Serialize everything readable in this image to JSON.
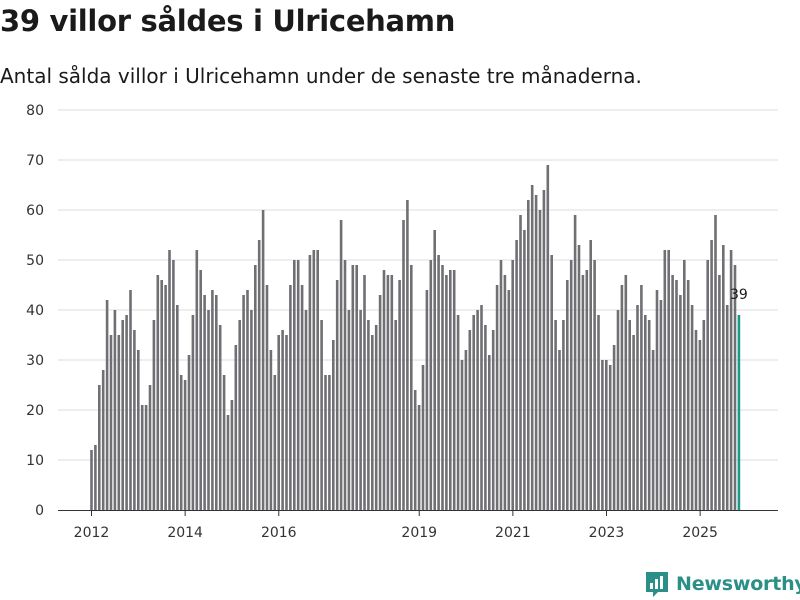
{
  "header": {
    "title": "39 villor såldes i Ulricehamn",
    "subtitle": "Antal sålda villor i Ulricehamn under de senaste tre månaderna."
  },
  "brand": {
    "name": "Newsworthy",
    "color": "#2a8f86"
  },
  "colors": {
    "bar": "#707074",
    "highlight": "#1a9a8e",
    "grid": "#dddddd",
    "axis": "#333333"
  },
  "chart_data": {
    "type": "bar",
    "title": "39 villor såldes i Ulricehamn",
    "subtitle": "Antal sålda villor i Ulricehamn under de senaste tre månaderna.",
    "xlabel": "",
    "ylabel": "",
    "ylim": [
      0,
      80
    ],
    "yticks": [
      0,
      10,
      20,
      30,
      40,
      50,
      60,
      70,
      80
    ],
    "xticks": [
      2012,
      2014,
      2016,
      2019,
      2021,
      2023,
      2025
    ],
    "x_start": 2012.0,
    "step": 0.0833,
    "grid": true,
    "highlight_last": true,
    "last_label": "39",
    "values": [
      12,
      13,
      25,
      28,
      42,
      35,
      40,
      35,
      38,
      39,
      44,
      36,
      32,
      21,
      21,
      25,
      38,
      47,
      46,
      45,
      52,
      50,
      41,
      27,
      26,
      31,
      39,
      52,
      48,
      43,
      40,
      44,
      43,
      37,
      27,
      19,
      22,
      33,
      38,
      43,
      44,
      40,
      49,
      54,
      60,
      45,
      32,
      27,
      35,
      36,
      35,
      45,
      50,
      50,
      45,
      40,
      51,
      52,
      52,
      38,
      27,
      27,
      34,
      46,
      58,
      50,
      40,
      49,
      49,
      40,
      47,
      38,
      35,
      37,
      43,
      48,
      47,
      47,
      38,
      46,
      58,
      62,
      49,
      24,
      21,
      29,
      44,
      50,
      56,
      51,
      49,
      47,
      48,
      48,
      39,
      30,
      32,
      36,
      39,
      40,
      41,
      37,
      31,
      36,
      45,
      50,
      47,
      44,
      50,
      54,
      59,
      56,
      62,
      65,
      63,
      60,
      64,
      69,
      51,
      38,
      32,
      38,
      46,
      50,
      59,
      53,
      47,
      48,
      54,
      50,
      39,
      30,
      30,
      29,
      33,
      40,
      45,
      47,
      38,
      35,
      41,
      45,
      39,
      38,
      32,
      44,
      42,
      52,
      52,
      47,
      46,
      43,
      50,
      46,
      41,
      36,
      34,
      38,
      50,
      54,
      59,
      47,
      53,
      41,
      52,
      49,
      39
    ]
  }
}
